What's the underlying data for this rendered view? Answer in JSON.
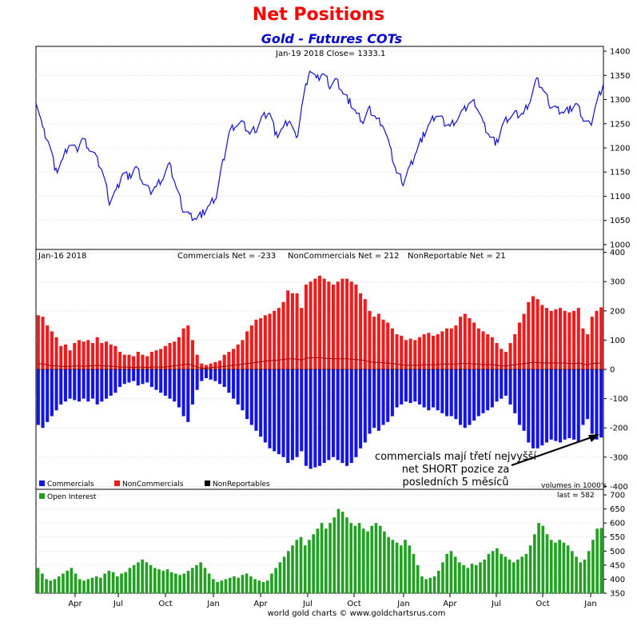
{
  "title": "Net Positions",
  "subtitle": "Gold - Futures COTs",
  "footer": "world gold charts © www.goldchartsrus.com",
  "price_panel": {
    "header": "Jan-19  2018   Close= 1333.1"
  },
  "net_panel": {
    "header_date": "Jan-16  2018",
    "header_comm": "Commercials Net = -233",
    "header_noncomm": "NonCommercials Net = 212",
    "header_nonrep": "NonReportable Net = 21",
    "legend": [
      {
        "label": "Commercials",
        "color": "#1414e6"
      },
      {
        "label": "NonCommercials",
        "color": "#ee1c1c"
      },
      {
        "label": "NonReportables",
        "color": "#000000"
      }
    ],
    "volumes_note": "volumes in 1000's",
    "annotation": [
      "commercials mají třetí nejvyšší",
      "net SHORT pozice za",
      "posledních 5 měsíců"
    ]
  },
  "oi_panel": {
    "legend": "Open Interest",
    "legend_color": "#22a022",
    "last": "last = 582"
  },
  "x_ticks": [
    "Apr",
    "Jul",
    "Oct",
    "Jan",
    "Apr",
    "Jul",
    "Oct",
    "Jan",
    "Apr",
    "Jul",
    "Oct",
    "Jan"
  ],
  "chart_data": [
    {
      "type": "line",
      "name": "Gold price",
      "color": "#1010d0",
      "ylim": [
        990,
        1410
      ],
      "yticks": [
        1000,
        1050,
        1100,
        1150,
        1200,
        1250,
        1300,
        1350,
        1400
      ],
      "points_per_step": 5,
      "anchors": [
        1300,
        1240,
        1210,
        1150,
        1175,
        1210,
        1195,
        1220,
        1200,
        1180,
        1150,
        1090,
        1110,
        1150,
        1140,
        1160,
        1130,
        1110,
        1120,
        1140,
        1165,
        1120,
        1075,
        1060,
        1055,
        1065,
        1080,
        1100,
        1170,
        1235,
        1250,
        1250,
        1230,
        1240,
        1265,
        1275,
        1225,
        1240,
        1260,
        1215,
        1300,
        1365,
        1340,
        1355,
        1330,
        1340,
        1315,
        1295,
        1270,
        1255,
        1280,
        1260,
        1250,
        1200,
        1150,
        1130,
        1160,
        1195,
        1225,
        1250,
        1270,
        1255,
        1245,
        1260,
        1275,
        1295,
        1290,
        1250,
        1225,
        1210,
        1250,
        1265,
        1270,
        1270,
        1300,
        1340,
        1320,
        1290,
        1280,
        1275,
        1280,
        1290,
        1260,
        1245,
        1295,
        1333
      ]
    },
    {
      "type": "bar",
      "name": "Commercials / NonCommercials net",
      "ylim": [
        -410,
        410
      ],
      "yticks": [
        -400,
        -300,
        -200,
        -100,
        0,
        100,
        200,
        300,
        400
      ],
      "noncommercials": [
        185,
        180,
        150,
        130,
        110,
        80,
        85,
        65,
        90,
        100,
        95,
        100,
        90,
        110,
        90,
        95,
        85,
        80,
        60,
        50,
        50,
        45,
        60,
        50,
        45,
        60,
        65,
        70,
        80,
        90,
        95,
        110,
        140,
        150,
        100,
        50,
        20,
        15,
        20,
        25,
        30,
        50,
        60,
        70,
        85,
        100,
        130,
        150,
        170,
        175,
        185,
        190,
        200,
        210,
        230,
        270,
        260,
        260,
        210,
        290,
        300,
        310,
        320,
        310,
        300,
        290,
        300,
        310,
        310,
        300,
        290,
        260,
        240,
        200,
        180,
        190,
        170,
        160,
        140,
        120,
        115,
        100,
        105,
        100,
        110,
        120,
        125,
        115,
        120,
        130,
        140,
        140,
        150,
        180,
        190,
        175,
        160,
        140,
        130,
        120,
        110,
        90,
        70,
        60,
        90,
        120,
        160,
        190,
        230,
        250,
        240,
        220,
        210,
        200,
        205,
        210,
        200,
        195,
        200,
        210,
        140,
        120,
        180,
        200,
        212
      ],
      "commercials": [
        -190,
        -200,
        -180,
        -160,
        -140,
        -120,
        -110,
        -100,
        -105,
        -110,
        -100,
        -110,
        -100,
        -120,
        -110,
        -100,
        -90,
        -80,
        -60,
        -50,
        -45,
        -40,
        -55,
        -50,
        -45,
        -60,
        -70,
        -80,
        -90,
        -100,
        -110,
        -130,
        -160,
        -180,
        -120,
        -70,
        -40,
        -30,
        -35,
        -40,
        -50,
        -60,
        -80,
        -100,
        -120,
        -140,
        -170,
        -190,
        -210,
        -230,
        -250,
        -270,
        -280,
        -290,
        -300,
        -320,
        -310,
        -300,
        -280,
        -330,
        -340,
        -335,
        -330,
        -320,
        -310,
        -300,
        -310,
        -320,
        -330,
        -320,
        -300,
        -270,
        -250,
        -220,
        -200,
        -210,
        -190,
        -180,
        -160,
        -130,
        -120,
        -110,
        -115,
        -110,
        -120,
        -130,
        -140,
        -130,
        -140,
        -150,
        -160,
        -160,
        -170,
        -190,
        -200,
        -190,
        -175,
        -160,
        -150,
        -140,
        -130,
        -110,
        -100,
        -90,
        -120,
        -150,
        -190,
        -210,
        -250,
        -270,
        -270,
        -260,
        -250,
        -240,
        -245,
        -250,
        -240,
        -235,
        -240,
        -250,
        -190,
        -170,
        -220,
        -240,
        -233
      ],
      "nonreportables": [
        20,
        18,
        15,
        12,
        12,
        10,
        10,
        10,
        12,
        12,
        10,
        12,
        12,
        14,
        12,
        12,
        10,
        10,
        8,
        8,
        8,
        6,
        8,
        8,
        6,
        8,
        8,
        8,
        8,
        10,
        12,
        14,
        16,
        18,
        14,
        8,
        4,
        4,
        6,
        8,
        8,
        10,
        12,
        14,
        16,
        18,
        20,
        22,
        24,
        26,
        28,
        30,
        30,
        32,
        34,
        36,
        36,
        35,
        32,
        38,
        40,
        40,
        40,
        38,
        38,
        36,
        36,
        36,
        36,
        35,
        34,
        32,
        30,
        26,
        24,
        24,
        22,
        22,
        20,
        18,
        16,
        14,
        14,
        14,
        14,
        16,
        16,
        16,
        16,
        18,
        18,
        18,
        18,
        20,
        20,
        20,
        18,
        18,
        16,
        16,
        16,
        14,
        12,
        12,
        14,
        16,
        18,
        20,
        22,
        24,
        24,
        22,
        22,
        22,
        22,
        22,
        22,
        20,
        20,
        22,
        18,
        16,
        20,
        21,
        21
      ]
    },
    {
      "type": "bar",
      "name": "Open Interest",
      "ylim": [
        350,
        720
      ],
      "yticks": [
        350,
        400,
        450,
        500,
        550,
        600,
        650,
        700
      ],
      "values": [
        440,
        420,
        400,
        395,
        400,
        410,
        420,
        430,
        440,
        420,
        400,
        395,
        400,
        405,
        410,
        405,
        420,
        430,
        425,
        410,
        420,
        425,
        440,
        450,
        460,
        470,
        460,
        450,
        440,
        435,
        430,
        435,
        425,
        420,
        415,
        420,
        430,
        440,
        450,
        460,
        440,
        420,
        400,
        390,
        395,
        400,
        405,
        410,
        405,
        415,
        420,
        410,
        400,
        395,
        390,
        395,
        420,
        440,
        460,
        480,
        500,
        520,
        540,
        550,
        520,
        540,
        560,
        580,
        600,
        580,
        600,
        620,
        650,
        640,
        620,
        600,
        590,
        600,
        580,
        570,
        590,
        600,
        590,
        570,
        550,
        540,
        530,
        520,
        540,
        520,
        490,
        450,
        410,
        400,
        405,
        410,
        430,
        460,
        490,
        500,
        480,
        460,
        450,
        440,
        455,
        450,
        460,
        470,
        490,
        500,
        510,
        490,
        480,
        470,
        460,
        470,
        480,
        490,
        520,
        560,
        600,
        590,
        560,
        540,
        530,
        540,
        530,
        520,
        500,
        480,
        460,
        470,
        500,
        540,
        580,
        582
      ]
    }
  ]
}
